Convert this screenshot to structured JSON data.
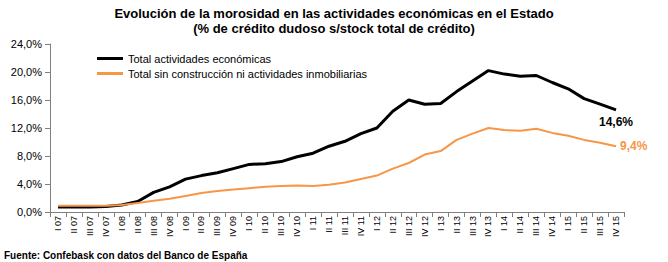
{
  "chart_data": {
    "type": "line",
    "title": "Evolución de la morosidad en las actividades económicas en el Estado",
    "subtitle": "(% de crédito dudoso s/stock total de crédito)",
    "source": "Fuente: Confebask con datos del Banco de España",
    "categories": [
      "I 07",
      "II 07",
      "III 07",
      "IV 07",
      "I 08",
      "II 08",
      "III 08",
      "IV 08",
      "I 09",
      "II 09",
      "III 09",
      "IV 09",
      "I 10",
      "II 10",
      "III 10",
      "IV 10",
      "I 11",
      "II 11",
      "III 11",
      "IV 11",
      "I 12",
      "II 12",
      "III 12",
      "IV 12",
      "I 13",
      "II 13",
      "III 13",
      "IV 13",
      "I 14",
      "II 14",
      "III 14",
      "IV 14",
      "I 15",
      "II 15",
      "III 15",
      "IV 15"
    ],
    "series": [
      {
        "name": "Total actividades económicas",
        "color": "#000000",
        "values": [
          0.7,
          0.7,
          0.7,
          0.8,
          1.0,
          1.5,
          2.8,
          3.6,
          4.7,
          5.2,
          5.6,
          6.2,
          6.8,
          6.9,
          7.2,
          7.9,
          8.4,
          9.4,
          10.1,
          11.2,
          12.0,
          14.4,
          16.0,
          15.4,
          15.5,
          17.2,
          18.7,
          20.2,
          19.7,
          19.4,
          19.5,
          18.5,
          17.6,
          16.2,
          15.4,
          14.6
        ],
        "value_labels": [
          null,
          null,
          null,
          null,
          null,
          null,
          null,
          null,
          null,
          null,
          null,
          null,
          null,
          null,
          null,
          null,
          null,
          null,
          null,
          null,
          null,
          null,
          null,
          null,
          null,
          null,
          null,
          null,
          null,
          null,
          null,
          null,
          null,
          null,
          null,
          "14,6%"
        ]
      },
      {
        "name": "Total sin construcción ni actividades inmobiliarias",
        "color": "#f79646",
        "values": [
          0.9,
          0.9,
          0.9,
          0.9,
          1.0,
          1.3,
          1.6,
          1.9,
          2.3,
          2.7,
          3.0,
          3.2,
          3.4,
          3.6,
          3.7,
          3.8,
          3.7,
          3.9,
          4.2,
          4.7,
          5.2,
          6.2,
          7.0,
          8.2,
          8.7,
          10.3,
          11.2,
          12.0,
          11.7,
          11.6,
          11.9,
          11.3,
          10.9,
          10.3,
          9.9,
          9.4
        ],
        "value_labels": [
          null,
          null,
          null,
          null,
          null,
          null,
          null,
          null,
          null,
          null,
          null,
          null,
          null,
          null,
          null,
          null,
          null,
          null,
          null,
          null,
          null,
          null,
          null,
          null,
          null,
          null,
          null,
          null,
          null,
          null,
          null,
          null,
          null,
          null,
          null,
          "9,4%"
        ]
      }
    ],
    "ylim": [
      0,
      24
    ],
    "yticks": [
      {
        "value": 0,
        "label": "0,0%"
      },
      {
        "value": 4,
        "label": "4,0%"
      },
      {
        "value": 8,
        "label": "8,0%"
      },
      {
        "value": 12,
        "label": "12,0%"
      },
      {
        "value": 16,
        "label": "16,0%"
      },
      {
        "value": 20,
        "label": "20,0%"
      },
      {
        "value": 24,
        "label": "24,0%"
      }
    ],
    "grid": false,
    "legend": "top-left",
    "data_labels": true
  }
}
